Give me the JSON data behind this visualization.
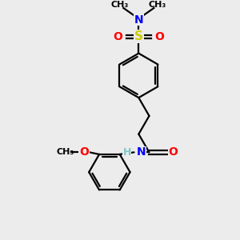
{
  "bg_color": "#ececec",
  "bond_color": "#000000",
  "N_color": "#0000ff",
  "O_color": "#ff0000",
  "S_color": "#cccc00",
  "H_color": "#7ec8c8",
  "font_size": 10,
  "line_width": 1.6,
  "xlim": [
    0,
    10
  ],
  "ylim": [
    0,
    10
  ]
}
